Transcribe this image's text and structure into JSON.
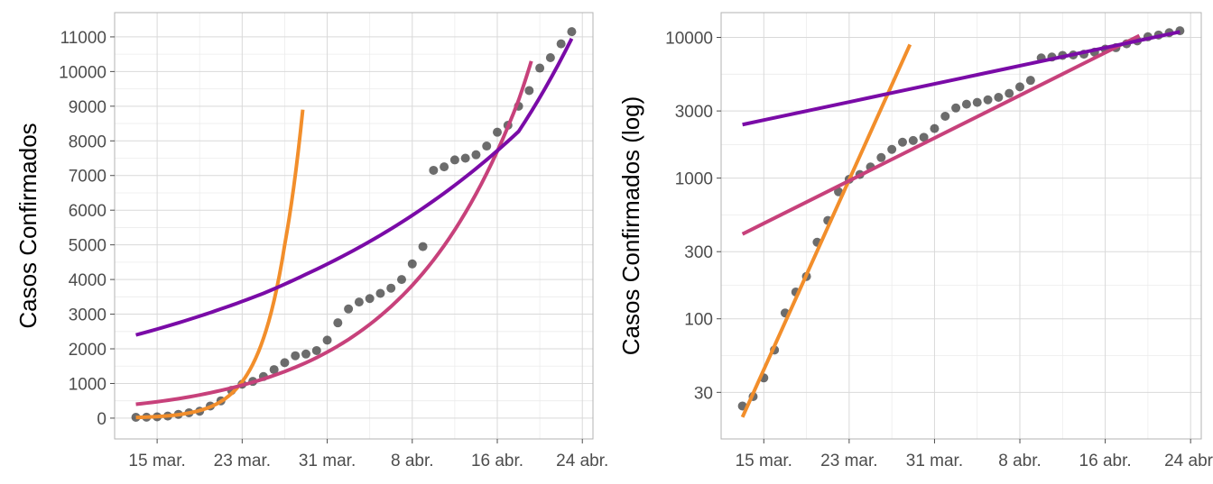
{
  "chart_data": [
    {
      "type": "scatter",
      "ylabel": "Casos Confirmados",
      "xlabel": "",
      "y_scale": "linear",
      "ylim": [
        -600,
        11700
      ],
      "xlim": [
        "2020-03-11",
        "2020-04-25"
      ],
      "y_ticks": [
        0,
        1000,
        2000,
        3000,
        4000,
        5000,
        6000,
        7000,
        8000,
        9000,
        10000,
        11000
      ],
      "x_ticks": [
        {
          "date": "2020-03-15",
          "label": "15 mar."
        },
        {
          "date": "2020-03-23",
          "label": "23 mar."
        },
        {
          "date": "2020-03-31",
          "label": "31 mar."
        },
        {
          "date": "2020-04-08",
          "label": "8 abr."
        },
        {
          "date": "2020-04-16",
          "label": "16 abr."
        },
        {
          "date": "2020-04-24",
          "label": "24 abr."
        }
      ],
      "grid": true,
      "series": [
        {
          "type": "scatter",
          "color": "#333333",
          "points": [
            {
              "x": "2020-03-13",
              "y": 24
            },
            {
              "x": "2020-03-14",
              "y": 28
            },
            {
              "x": "2020-03-15",
              "y": 38
            },
            {
              "x": "2020-03-16",
              "y": 60
            },
            {
              "x": "2020-03-17",
              "y": 110
            },
            {
              "x": "2020-03-18",
              "y": 155
            },
            {
              "x": "2020-03-19",
              "y": 200
            },
            {
              "x": "2020-03-20",
              "y": 350
            },
            {
              "x": "2020-03-21",
              "y": 500
            },
            {
              "x": "2020-03-22",
              "y": 800
            },
            {
              "x": "2020-03-23",
              "y": 980
            },
            {
              "x": "2020-03-24",
              "y": 1060
            },
            {
              "x": "2020-03-25",
              "y": 1200
            },
            {
              "x": "2020-03-26",
              "y": 1400
            },
            {
              "x": "2020-03-27",
              "y": 1600
            },
            {
              "x": "2020-03-28",
              "y": 1800
            },
            {
              "x": "2020-03-29",
              "y": 1850
            },
            {
              "x": "2020-03-30",
              "y": 1950
            },
            {
              "x": "2020-03-31",
              "y": 2250
            },
            {
              "x": "2020-04-01",
              "y": 2750
            },
            {
              "x": "2020-04-02",
              "y": 3150
            },
            {
              "x": "2020-04-03",
              "y": 3350
            },
            {
              "x": "2020-04-04",
              "y": 3450
            },
            {
              "x": "2020-04-05",
              "y": 3600
            },
            {
              "x": "2020-04-06",
              "y": 3750
            },
            {
              "x": "2020-04-07",
              "y": 4000
            },
            {
              "x": "2020-04-08",
              "y": 4450
            },
            {
              "x": "2020-04-09",
              "y": 4950
            },
            {
              "x": "2020-04-10",
              "y": 7150
            },
            {
              "x": "2020-04-11",
              "y": 7250
            },
            {
              "x": "2020-04-12",
              "y": 7450
            },
            {
              "x": "2020-04-13",
              "y": 7500
            },
            {
              "x": "2020-04-14",
              "y": 7600
            },
            {
              "x": "2020-04-15",
              "y": 7850
            },
            {
              "x": "2020-04-16",
              "y": 8250
            },
            {
              "x": "2020-04-17",
              "y": 8450
            },
            {
              "x": "2020-04-18",
              "y": 9000
            },
            {
              "x": "2020-04-19",
              "y": 9450
            },
            {
              "x": "2020-04-20",
              "y": 10100
            },
            {
              "x": "2020-04-21",
              "y": 10400
            },
            {
              "x": "2020-04-22",
              "y": 10800
            },
            {
              "x": "2020-04-23",
              "y": 11150
            }
          ]
        },
        {
          "type": "line",
          "color": "#f28e2b",
          "points": [
            {
              "x": "2020-03-13",
              "y": 20
            },
            {
              "x": "2020-03-15",
              "y": 45
            },
            {
              "x": "2020-03-17",
              "y": 100
            },
            {
              "x": "2020-03-19",
              "y": 220
            },
            {
              "x": "2020-03-21",
              "y": 480
            },
            {
              "x": "2020-03-23",
              "y": 1050
            },
            {
              "x": "2020-03-25",
              "y": 2300
            },
            {
              "x": "2020-03-27",
              "y": 5000
            },
            {
              "x": "2020-03-28.7",
              "y": 8900
            }
          ]
        },
        {
          "type": "line",
          "color": "#c7417b",
          "points": [
            {
              "x": "2020-03-13",
              "y": 400
            },
            {
              "x": "2020-03-17",
              "y": 560
            },
            {
              "x": "2020-03-21",
              "y": 800
            },
            {
              "x": "2020-03-25",
              "y": 1130
            },
            {
              "x": "2020-03-29",
              "y": 1600
            },
            {
              "x": "2020-04-02",
              "y": 2270
            },
            {
              "x": "2020-04-06",
              "y": 3220
            },
            {
              "x": "2020-04-10",
              "y": 4560
            },
            {
              "x": "2020-04-14",
              "y": 6470
            },
            {
              "x": "2020-04-18",
              "y": 9170
            },
            {
              "x": "2020-04-19.2",
              "y": 10300
            }
          ]
        },
        {
          "type": "line",
          "color": "#7a0ba7",
          "points": [
            {
              "x": "2020-03-13",
              "y": 2400
            },
            {
              "x": "2020-03-17",
              "y": 2750
            },
            {
              "x": "2020-03-21",
              "y": 3150
            },
            {
              "x": "2020-03-25",
              "y": 3600
            },
            {
              "x": "2020-03-29",
              "y": 4150
            },
            {
              "x": "2020-04-02",
              "y": 4760
            },
            {
              "x": "2020-04-06",
              "y": 5460
            },
            {
              "x": "2020-04-10",
              "y": 6270
            },
            {
              "x": "2020-04-14",
              "y": 7200
            },
            {
              "x": "2020-04-18",
              "y": 8270
            },
            {
              "x": "2020-04-23",
              "y": 10950
            }
          ]
        }
      ]
    },
    {
      "type": "scatter",
      "ylabel": "Casos Confirmados (log)",
      "xlabel": "",
      "y_scale": "log",
      "ylim": [
        14,
        15000
      ],
      "xlim": [
        "2020-03-11",
        "2020-04-25"
      ],
      "y_ticks": [
        {
          "value": 30,
          "label": "30"
        },
        {
          "value": 100,
          "label": "100"
        },
        {
          "value": 300,
          "label": "300"
        },
        {
          "value": 1000,
          "label": "1000"
        },
        {
          "value": 3000,
          "label": "3000"
        },
        {
          "value": 10000,
          "label": "10000"
        }
      ],
      "x_ticks": [
        {
          "date": "2020-03-15",
          "label": "15 mar."
        },
        {
          "date": "2020-03-23",
          "label": "23 mar."
        },
        {
          "date": "2020-03-31",
          "label": "31 mar."
        },
        {
          "date": "2020-04-08",
          "label": "8 abr."
        },
        {
          "date": "2020-04-16",
          "label": "16 abr."
        },
        {
          "date": "2020-04-24",
          "label": "24 abr."
        }
      ],
      "grid": true,
      "series": [
        {
          "type": "scatter",
          "color": "#333333",
          "points": [
            {
              "x": "2020-03-13",
              "y": 24
            },
            {
              "x": "2020-03-14",
              "y": 28
            },
            {
              "x": "2020-03-15",
              "y": 38
            },
            {
              "x": "2020-03-16",
              "y": 60
            },
            {
              "x": "2020-03-17",
              "y": 110
            },
            {
              "x": "2020-03-18",
              "y": 155
            },
            {
              "x": "2020-03-19",
              "y": 200
            },
            {
              "x": "2020-03-20",
              "y": 350
            },
            {
              "x": "2020-03-21",
              "y": 500
            },
            {
              "x": "2020-03-22",
              "y": 800
            },
            {
              "x": "2020-03-23",
              "y": 980
            },
            {
              "x": "2020-03-24",
              "y": 1060
            },
            {
              "x": "2020-03-25",
              "y": 1200
            },
            {
              "x": "2020-03-26",
              "y": 1400
            },
            {
              "x": "2020-03-27",
              "y": 1600
            },
            {
              "x": "2020-03-28",
              "y": 1800
            },
            {
              "x": "2020-03-29",
              "y": 1850
            },
            {
              "x": "2020-03-30",
              "y": 1950
            },
            {
              "x": "2020-03-31",
              "y": 2250
            },
            {
              "x": "2020-04-01",
              "y": 2750
            },
            {
              "x": "2020-04-02",
              "y": 3150
            },
            {
              "x": "2020-04-03",
              "y": 3350
            },
            {
              "x": "2020-04-04",
              "y": 3450
            },
            {
              "x": "2020-04-05",
              "y": 3600
            },
            {
              "x": "2020-04-06",
              "y": 3750
            },
            {
              "x": "2020-04-07",
              "y": 4000
            },
            {
              "x": "2020-04-08",
              "y": 4450
            },
            {
              "x": "2020-04-09",
              "y": 4950
            },
            {
              "x": "2020-04-10",
              "y": 7150
            },
            {
              "x": "2020-04-11",
              "y": 7250
            },
            {
              "x": "2020-04-12",
              "y": 7450
            },
            {
              "x": "2020-04-13",
              "y": 7500
            },
            {
              "x": "2020-04-14",
              "y": 7600
            },
            {
              "x": "2020-04-15",
              "y": 7850
            },
            {
              "x": "2020-04-16",
              "y": 8250
            },
            {
              "x": "2020-04-17",
              "y": 8450
            },
            {
              "x": "2020-04-18",
              "y": 9000
            },
            {
              "x": "2020-04-19",
              "y": 9450
            },
            {
              "x": "2020-04-20",
              "y": 10100
            },
            {
              "x": "2020-04-21",
              "y": 10400
            },
            {
              "x": "2020-04-22",
              "y": 10800
            },
            {
              "x": "2020-04-23",
              "y": 11150
            }
          ]
        },
        {
          "type": "line",
          "color": "#f28e2b",
          "points": [
            {
              "x": "2020-03-13",
              "y": 20
            },
            {
              "x": "2020-03-28.7",
              "y": 8900
            }
          ]
        },
        {
          "type": "line",
          "color": "#c7417b",
          "points": [
            {
              "x": "2020-03-13",
              "y": 400
            },
            {
              "x": "2020-04-19.2",
              "y": 10300
            }
          ]
        },
        {
          "type": "line",
          "color": "#7a0ba7",
          "points": [
            {
              "x": "2020-03-13",
              "y": 2400
            },
            {
              "x": "2020-04-23",
              "y": 10950
            }
          ]
        }
      ]
    }
  ]
}
